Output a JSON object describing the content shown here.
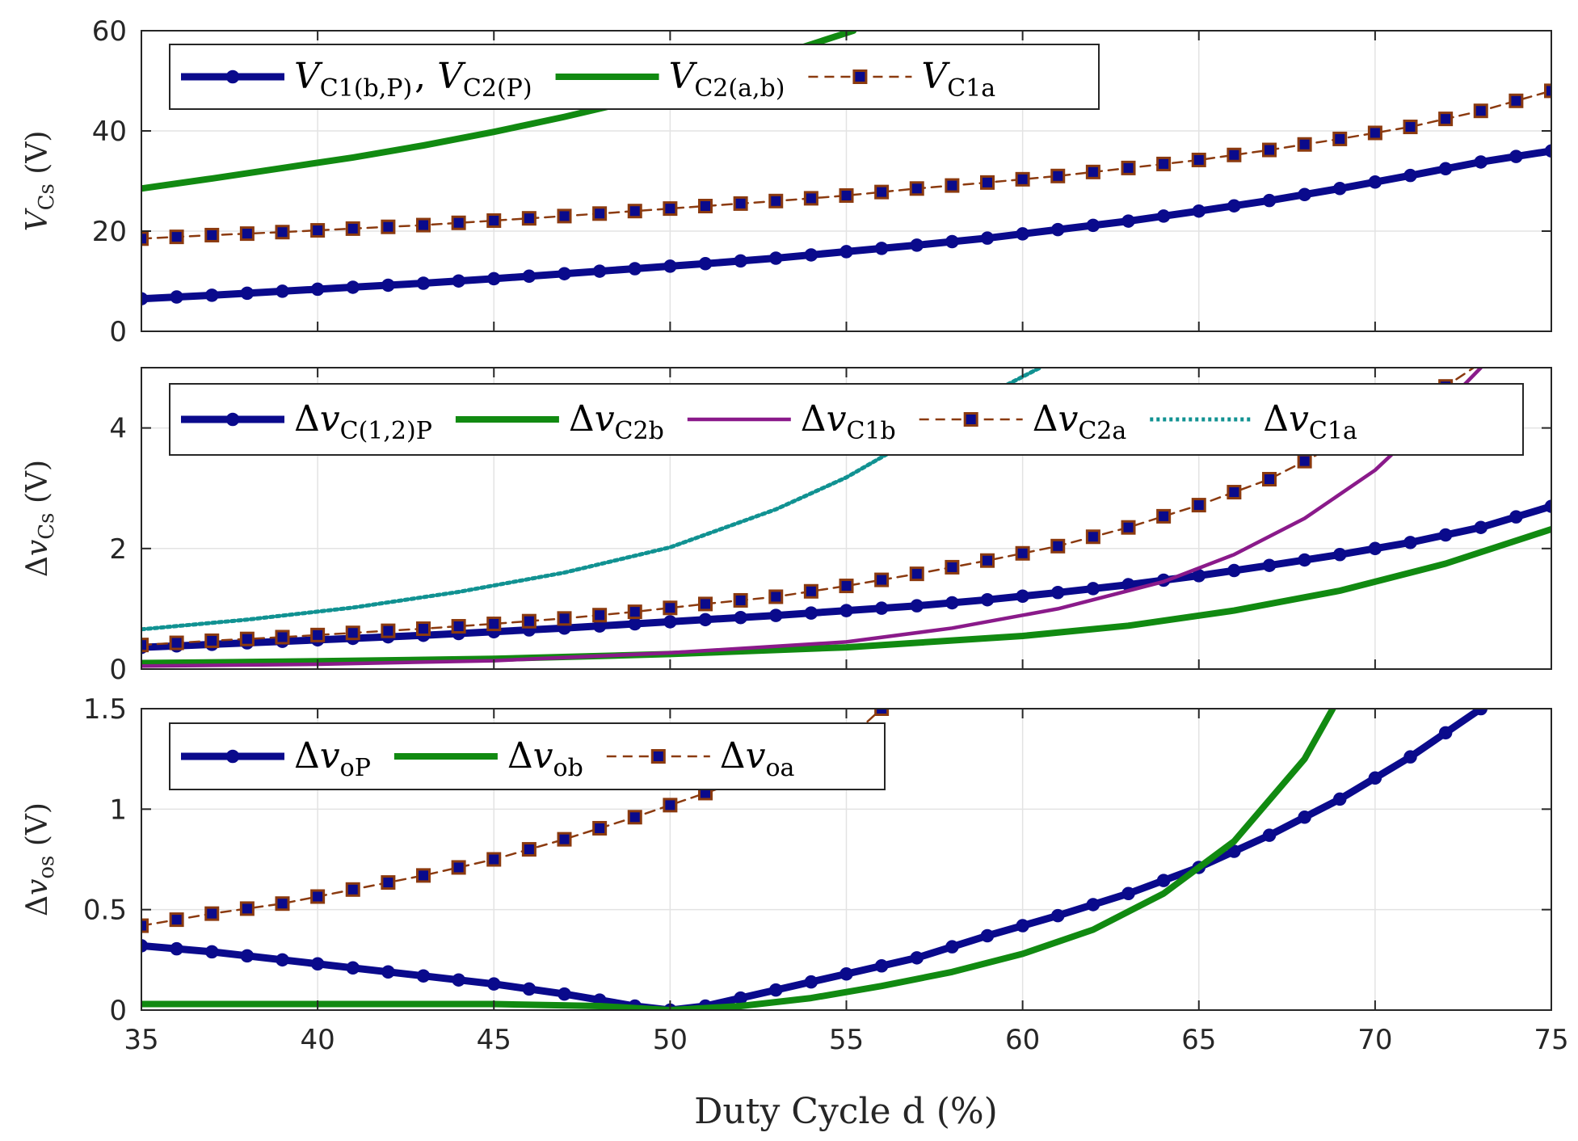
{
  "chart_data": {
    "type": "line",
    "xlabel": "Duty Cycle d (%)",
    "x_ticks": [
      "35",
      "40",
      "45",
      "50",
      "55",
      "60",
      "65",
      "70",
      "75"
    ],
    "xlim": [
      35,
      75
    ],
    "colors": {
      "navy": "#0a0a8c",
      "green": "#118a11",
      "purple": "#8a1a8a",
      "brown": "#8b3a0f",
      "teal": "#119292"
    },
    "panels": [
      {
        "ylabel": "V_Cs (V)",
        "ylim": [
          0,
          60
        ],
        "y_ticks": [
          "0",
          "20",
          "40",
          "60"
        ],
        "legend": [
          {
            "label": "V_C1(b,P), V_C2(P)",
            "series": 0
          },
          {
            "label": "V_C2(a,b)",
            "series": 1
          },
          {
            "label": "V_C1a",
            "series": 2
          }
        ],
        "series": [
          {
            "name": "V_C1(b,P), V_C2(P)",
            "color": "navy",
            "style": "solid-dot",
            "x": [
              35,
              37,
              39,
              41,
              43,
              45,
              47,
              49,
              51,
              53,
              55,
              57,
              59,
              61,
              63,
              65,
              67,
              69,
              71,
              73,
              75
            ],
            "y": [
              6.5,
              7.2,
              8.0,
              8.8,
              9.6,
              10.5,
              11.5,
              12.5,
              13.5,
              14.6,
              15.9,
              17.2,
              18.6,
              20.3,
              22.0,
              24.0,
              26.1,
              28.5,
              31.1,
              33.8,
              36.0
            ]
          },
          {
            "name": "V_C2(a,b)",
            "color": "green",
            "style": "thick",
            "x": [
              35,
              37,
              39,
              41,
              43,
              45,
              47,
              49,
              51,
              53,
              55.2
            ],
            "y": [
              28.5,
              30.5,
              32.6,
              34.7,
              37.1,
              39.8,
              42.8,
              46.1,
              50.4,
              55.0,
              60.0
            ]
          },
          {
            "name": "V_C1a",
            "color": "brown",
            "style": "dash-square",
            "x": [
              35,
              37,
              39,
              41,
              43,
              45,
              47,
              49,
              51,
              53,
              55,
              57,
              59,
              61,
              63,
              65,
              67,
              69,
              71,
              73,
              75
            ],
            "y": [
              18.5,
              19.2,
              19.8,
              20.5,
              21.2,
              22.1,
              23.0,
              24.0,
              25.0,
              26.0,
              27.1,
              28.5,
              29.7,
              31.0,
              32.6,
              34.2,
              36.2,
              38.4,
              40.8,
              44.0,
              48.0
            ]
          }
        ]
      },
      {
        "ylabel": "Δv_Cs (V)",
        "ylim": [
          0,
          5
        ],
        "y_ticks": [
          "0",
          "2",
          "4"
        ],
        "legend": [
          {
            "label": "Δv_C(1,2)P",
            "series": 0
          },
          {
            "label": "Δv_C2b",
            "series": 1
          },
          {
            "label": "Δv_C1b",
            "series": 2
          },
          {
            "label": "Δv_C2a",
            "series": 3
          },
          {
            "label": "Δv_C1a",
            "series": 4
          }
        ],
        "series": [
          {
            "name": "Δv_C(1,2)P",
            "color": "navy",
            "style": "solid-dot",
            "x": [
              35,
              37,
              39,
              41,
              43,
              45,
              47,
              49,
              51,
              53,
              55,
              57,
              59,
              61,
              63,
              65,
              67,
              69,
              71,
              73,
              75
            ],
            "y": [
              0.36,
              0.41,
              0.46,
              0.51,
              0.56,
              0.62,
              0.68,
              0.75,
              0.82,
              0.89,
              0.97,
              1.05,
              1.15,
              1.27,
              1.4,
              1.55,
              1.72,
              1.9,
              2.1,
              2.35,
              2.7
            ]
          },
          {
            "name": "Δv_C2b",
            "color": "green",
            "style": "thick",
            "x": [
              35,
              40,
              45,
              50,
              55,
              60,
              63,
              66,
              69,
              72,
              75
            ],
            "y": [
              0.1,
              0.13,
              0.17,
              0.25,
              0.36,
              0.55,
              0.72,
              0.97,
              1.3,
              1.75,
              2.32
            ]
          },
          {
            "name": "Δv_C1b",
            "color": "purple",
            "style": "solid",
            "x": [
              35,
              40,
              45,
              50,
              55,
              58,
              61,
              64,
              66,
              68,
              70,
              72,
              73
            ],
            "y": [
              0.05,
              0.08,
              0.14,
              0.27,
              0.45,
              0.68,
              1.0,
              1.45,
              1.9,
              2.5,
              3.3,
              4.4,
              5.0
            ]
          },
          {
            "name": "Δv_C2a",
            "color": "brown",
            "style": "dash-square",
            "x": [
              35,
              37,
              39,
              41,
              43,
              45,
              47,
              49,
              51,
              53,
              55,
              57,
              59,
              61,
              63,
              65,
              67,
              69,
              71,
              72.8
            ],
            "y": [
              0.4,
              0.47,
              0.53,
              0.6,
              0.67,
              0.75,
              0.84,
              0.95,
              1.08,
              1.2,
              1.38,
              1.58,
              1.8,
              2.04,
              2.35,
              2.72,
              3.15,
              3.75,
              4.3,
              5.0
            ]
          },
          {
            "name": "Δv_C1a",
            "color": "teal",
            "style": "dotted",
            "x": [
              35,
              38,
              41,
              44,
              47,
              50,
              53,
              55,
              57,
              59,
              60.5
            ],
            "y": [
              0.66,
              0.82,
              1.02,
              1.28,
              1.6,
              2.02,
              2.65,
              3.18,
              3.85,
              4.55,
              5.0
            ]
          }
        ]
      },
      {
        "ylabel": "Δv_os (V)",
        "ylim": [
          0,
          1.5
        ],
        "y_ticks": [
          "0",
          "0.5",
          "1",
          "1.5"
        ],
        "legend": [
          {
            "label": "Δv_oP",
            "series": 0
          },
          {
            "label": "Δv_ob",
            "series": 1
          },
          {
            "label": "Δv_oa",
            "series": 2
          }
        ],
        "series": [
          {
            "name": "Δv_oP",
            "color": "navy",
            "style": "solid-dot",
            "x": [
              35,
              37,
              39,
              41,
              43,
              45,
              47,
              49,
              50,
              51,
              53,
              55,
              57,
              59,
              61,
              63,
              65,
              67,
              69,
              71,
              73
            ],
            "y": [
              0.32,
              0.29,
              0.25,
              0.21,
              0.17,
              0.13,
              0.08,
              0.02,
              0.0,
              0.02,
              0.1,
              0.18,
              0.26,
              0.37,
              0.47,
              0.58,
              0.71,
              0.87,
              1.05,
              1.26,
              1.5
            ]
          },
          {
            "name": "Δv_ob",
            "color": "green",
            "style": "thick",
            "x": [
              35,
              40,
              45,
              48,
              50,
              52,
              54,
              56,
              58,
              60,
              62,
              64,
              66,
              68,
              68.8
            ],
            "y": [
              0.03,
              0.03,
              0.03,
              0.02,
              0.0,
              0.02,
              0.06,
              0.12,
              0.19,
              0.28,
              0.4,
              0.58,
              0.84,
              1.25,
              1.5
            ]
          },
          {
            "name": "Δv_oa",
            "color": "brown",
            "style": "dash-square",
            "x": [
              35,
              37,
              39,
              41,
              43,
              45,
              47,
              49,
              51,
              53,
              55,
              56
            ],
            "y": [
              0.42,
              0.48,
              0.53,
              0.6,
              0.67,
              0.75,
              0.85,
              0.96,
              1.08,
              1.2,
              1.34,
              1.5
            ]
          }
        ]
      }
    ]
  }
}
